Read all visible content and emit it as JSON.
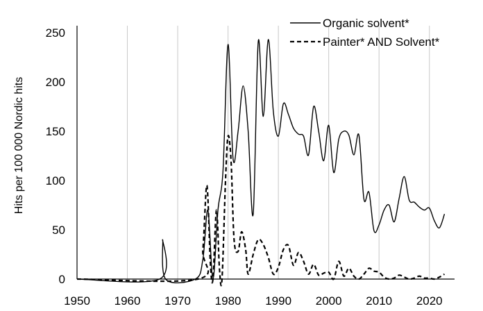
{
  "chart_data": {
    "type": "line",
    "title": "",
    "xlabel": "",
    "ylabel": "Hits per 100 000 Nordic hits",
    "xlim": [
      1950,
      2025
    ],
    "ylim": [
      0,
      250
    ],
    "x_ticks": [
      "1950",
      "1960",
      "1970",
      "1980",
      "1990",
      "2000",
      "2010",
      "2020"
    ],
    "y_ticks": [
      "0",
      "50",
      "100",
      "150",
      "200",
      "250"
    ],
    "grid": "vertical",
    "legend_position": "top-right",
    "series": [
      {
        "name": "Organic solvent*",
        "style": "solid",
        "color": "#000000",
        "points": [
          [
            1950,
            0
          ],
          [
            1966.4,
            0
          ],
          [
            1967,
            40
          ],
          [
            1967.6,
            0
          ],
          [
            1973.5,
            0
          ],
          [
            1975,
            20
          ],
          [
            1976,
            70
          ],
          [
            1977,
            0
          ],
          [
            1978,
            70
          ],
          [
            1979,
            110
          ],
          [
            1980,
            238
          ],
          [
            1981,
            122
          ],
          [
            1982,
            150
          ],
          [
            1983,
            196
          ],
          [
            1984,
            150
          ],
          [
            1985,
            66
          ],
          [
            1986,
            241
          ],
          [
            1987,
            165
          ],
          [
            1988,
            243
          ],
          [
            1989,
            170
          ],
          [
            1990,
            145
          ],
          [
            1991,
            178
          ],
          [
            1992,
            167
          ],
          [
            1993,
            153
          ],
          [
            1994,
            147
          ],
          [
            1995,
            145
          ],
          [
            1996,
            126
          ],
          [
            1997,
            175
          ],
          [
            1998,
            150
          ],
          [
            1999,
            120
          ],
          [
            2000,
            156
          ],
          [
            2001,
            108
          ],
          [
            2002,
            142
          ],
          [
            2003,
            150
          ],
          [
            2004,
            146
          ],
          [
            2005,
            126
          ],
          [
            2006,
            146
          ],
          [
            2007,
            81
          ],
          [
            2008,
            88
          ],
          [
            2009,
            49
          ],
          [
            2010,
            55
          ],
          [
            2011,
            70
          ],
          [
            2012,
            75
          ],
          [
            2013,
            58
          ],
          [
            2014,
            82
          ],
          [
            2015,
            104
          ],
          [
            2016,
            80
          ],
          [
            2017,
            78
          ],
          [
            2018,
            73
          ],
          [
            2019,
            70
          ],
          [
            2020,
            72
          ],
          [
            2021,
            59
          ],
          [
            2022,
            52
          ],
          [
            2023,
            66
          ]
        ]
      },
      {
        "name": "Painter* AND Solvent*",
        "style": "dashed",
        "color": "#000000",
        "points": [
          [
            1950,
            0
          ],
          [
            1974,
            0
          ],
          [
            1975,
            30
          ],
          [
            1975.8,
            95
          ],
          [
            1976.5,
            15
          ],
          [
            1977,
            0
          ],
          [
            1977.7,
            70
          ],
          [
            1978.3,
            10
          ],
          [
            1978.8,
            0
          ],
          [
            1979.5,
            100
          ],
          [
            1980,
            145
          ],
          [
            1980.6,
            120
          ],
          [
            1981.2,
            40
          ],
          [
            1982,
            28
          ],
          [
            1982.7,
            48
          ],
          [
            1983.5,
            30
          ],
          [
            1984,
            5
          ],
          [
            1985,
            25
          ],
          [
            1986,
            40
          ],
          [
            1987,
            35
          ],
          [
            1988,
            22
          ],
          [
            1989,
            5
          ],
          [
            1990,
            12
          ],
          [
            1991,
            30
          ],
          [
            1992,
            34
          ],
          [
            1993,
            14
          ],
          [
            1994,
            27
          ],
          [
            1995,
            18
          ],
          [
            1996,
            5
          ],
          [
            1997,
            15
          ],
          [
            1998,
            4
          ],
          [
            1999,
            6
          ],
          [
            2000,
            7
          ],
          [
            2001,
            0
          ],
          [
            2002,
            18
          ],
          [
            2003,
            3
          ],
          [
            2004,
            11
          ],
          [
            2005,
            3
          ],
          [
            2006,
            0
          ],
          [
            2007,
            5
          ],
          [
            2008,
            11
          ],
          [
            2009,
            8
          ],
          [
            2010,
            7
          ],
          [
            2011,
            2
          ],
          [
            2012,
            0
          ],
          [
            2013,
            1
          ],
          [
            2014,
            4
          ],
          [
            2015,
            2
          ],
          [
            2016,
            0
          ],
          [
            2017,
            1
          ],
          [
            2018,
            3
          ],
          [
            2019,
            1
          ],
          [
            2020,
            1
          ],
          [
            2021,
            0
          ],
          [
            2022,
            2
          ],
          [
            2023,
            5
          ]
        ]
      }
    ]
  }
}
